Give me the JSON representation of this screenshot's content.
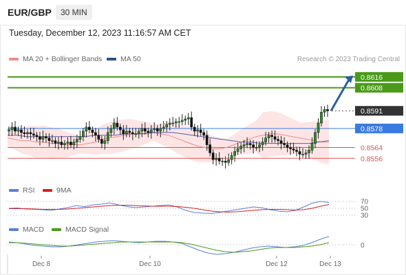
{
  "header": {
    "pair": "EUR/GBP",
    "timeframe": "30 MIN"
  },
  "datetime": "Tuesday, December 12, 2023 11:16:57 AM CET",
  "credit": "Research © 2023 Trading Central",
  "legends": {
    "price": [
      {
        "label": "MA 20 + Bollinger Bands",
        "color": "#f28b8b"
      },
      {
        "label": "MA 50",
        "color": "#2c4f8f"
      }
    ],
    "rsi": [
      {
        "label": "RSI",
        "color": "#5b7ed6"
      },
      {
        "label": "9MA",
        "color": "#d42020"
      }
    ],
    "macd": [
      {
        "label": "MACD",
        "color": "#5b7ed6"
      },
      {
        "label": "MACD Signal",
        "color": "#4a9a1a"
      }
    ]
  },
  "chart_data": [
    {
      "type": "candlestick",
      "panel": "price",
      "ylim": [
        0.8545,
        0.8622
      ],
      "current_price": "0.8591",
      "levels": [
        {
          "value": 0.8616,
          "label": "0.8616",
          "kind": "resistance",
          "color": "#4a9a1a"
        },
        {
          "value": 0.8608,
          "label": "0.8608",
          "kind": "resistance",
          "color": "#4a9a1a"
        },
        {
          "value": 0.8578,
          "label": "0.8578",
          "kind": "pivot",
          "color": "#3a7be0"
        },
        {
          "value": 0.8564,
          "label": "0.8564",
          "kind": "support",
          "color": "#e05050"
        },
        {
          "value": 0.8556,
          "label": "0.8556",
          "kind": "support",
          "color": "#e05050"
        }
      ],
      "close": [
        0.8577,
        0.8579,
        0.8576,
        0.8577,
        0.8575,
        0.8574,
        0.8575,
        0.8574,
        0.8573,
        0.8572,
        0.857,
        0.8572,
        0.8571,
        0.8569,
        0.8569,
        0.8567,
        0.8568,
        0.8566,
        0.8567,
        0.8568,
        0.8566,
        0.8568,
        0.857,
        0.8572,
        0.8576,
        0.8579,
        0.8577,
        0.8575,
        0.8573,
        0.857,
        0.8567,
        0.8569,
        0.8575,
        0.8578,
        0.8582,
        0.8579,
        0.8577,
        0.8574,
        0.8576,
        0.8575,
        0.8574,
        0.8574,
        0.8576,
        0.8578,
        0.8576,
        0.8575,
        0.8577,
        0.8578,
        0.8576,
        0.8578,
        0.8579,
        0.8581,
        0.8582,
        0.8582,
        0.8583,
        0.8583,
        0.8584,
        0.8585,
        0.8586,
        0.8579,
        0.8576,
        0.8577,
        0.8575,
        0.8573,
        0.8566,
        0.856,
        0.8555,
        0.8556,
        0.8554,
        0.8554,
        0.8553,
        0.8555,
        0.8558,
        0.8561,
        0.8563,
        0.8565,
        0.8566,
        0.8567,
        0.8566,
        0.8564,
        0.8564,
        0.8566,
        0.8568,
        0.8571,
        0.8573,
        0.8572,
        0.857,
        0.8569,
        0.8567,
        0.8566,
        0.8564,
        0.8563,
        0.8562,
        0.8561,
        0.8559,
        0.8559,
        0.856,
        0.8562,
        0.8567,
        0.8575,
        0.8582,
        0.859,
        0.8592,
        0.8591
      ],
      "ma20": [
        0.8571,
        0.857,
        0.8569,
        0.8569,
        0.8568,
        0.8568,
        0.8567,
        0.8567,
        0.8566,
        0.8566,
        0.8566,
        0.8567,
        0.8568,
        0.857,
        0.8571,
        0.8572,
        0.8573,
        0.8574,
        0.8574,
        0.8575,
        0.8575,
        0.8574,
        0.8573,
        0.8571,
        0.8569,
        0.8567,
        0.8565,
        0.8564,
        0.8563,
        0.8563,
        0.8564,
        0.8566,
        0.8568,
        0.857,
        0.8572,
        0.8573,
        0.8574,
        0.8574,
        0.8573,
        0.8572,
        0.8571,
        0.857,
        0.8569,
        0.8568,
        0.8568
      ],
      "ma50": [
        0.8573,
        0.8573,
        0.8572,
        0.8572,
        0.8572,
        0.8572,
        0.8572,
        0.8572,
        0.8572,
        0.8573,
        0.8573,
        0.8573,
        0.8574,
        0.8574,
        0.8574,
        0.8575,
        0.8575,
        0.8575,
        0.8574,
        0.8573,
        0.8572,
        0.8571,
        0.857,
        0.8569,
        0.8568,
        0.8568,
        0.8567,
        0.8567,
        0.8567,
        0.8567,
        0.8567,
        0.8567,
        0.8568,
        0.8569
      ]
    },
    {
      "type": "line",
      "panel": "rsi",
      "ylim": [
        20,
        80
      ],
      "ticks": [
        70,
        50,
        30
      ],
      "series": [
        {
          "name": "RSI",
          "values": [
            50,
            51,
            48,
            47,
            46,
            44,
            48,
            52,
            58,
            55,
            60,
            62,
            66,
            60,
            55,
            52,
            54,
            56,
            58,
            60,
            54,
            44,
            38,
            36,
            35,
            38,
            42,
            46,
            50,
            54,
            52,
            46,
            42,
            40,
            44,
            54,
            65,
            70,
            67
          ]
        },
        {
          "name": "9MA",
          "values": [
            49,
            49,
            49,
            48,
            47,
            47,
            47,
            48,
            50,
            52,
            54,
            56,
            58,
            59,
            59,
            58,
            57,
            56,
            56,
            56,
            55,
            53,
            50,
            46,
            42,
            40,
            39,
            40,
            42,
            44,
            46,
            47,
            47,
            46,
            45,
            46,
            50,
            56,
            61
          ]
        }
      ]
    },
    {
      "type": "line",
      "panel": "macd",
      "ticks": [
        0
      ],
      "series": [
        {
          "name": "MACD",
          "values": [
            4,
            3,
            1,
            -1,
            -2,
            -3,
            -3,
            -2,
            0,
            2,
            4,
            5,
            6,
            5,
            4,
            3,
            4,
            5,
            5,
            4,
            2,
            -3,
            -8,
            -12,
            -14,
            -13,
            -11,
            -8,
            -5,
            -3,
            -2,
            -3,
            -4,
            -3,
            -1,
            3,
            8,
            12
          ]
        },
        {
          "name": "MACD Signal",
          "values": [
            3,
            3,
            2,
            1,
            0,
            -1,
            -2,
            -2,
            -1,
            0,
            1,
            2,
            3,
            4,
            4,
            4,
            4,
            4,
            4,
            4,
            3,
            1,
            -2,
            -5,
            -8,
            -10,
            -11,
            -10,
            -9,
            -7,
            -5,
            -4,
            -4,
            -4,
            -3,
            -2,
            0,
            3
          ]
        }
      ]
    }
  ],
  "x_axis": [
    "Dec 8",
    "Dec 10",
    "Dec 12",
    "Dec 13"
  ]
}
